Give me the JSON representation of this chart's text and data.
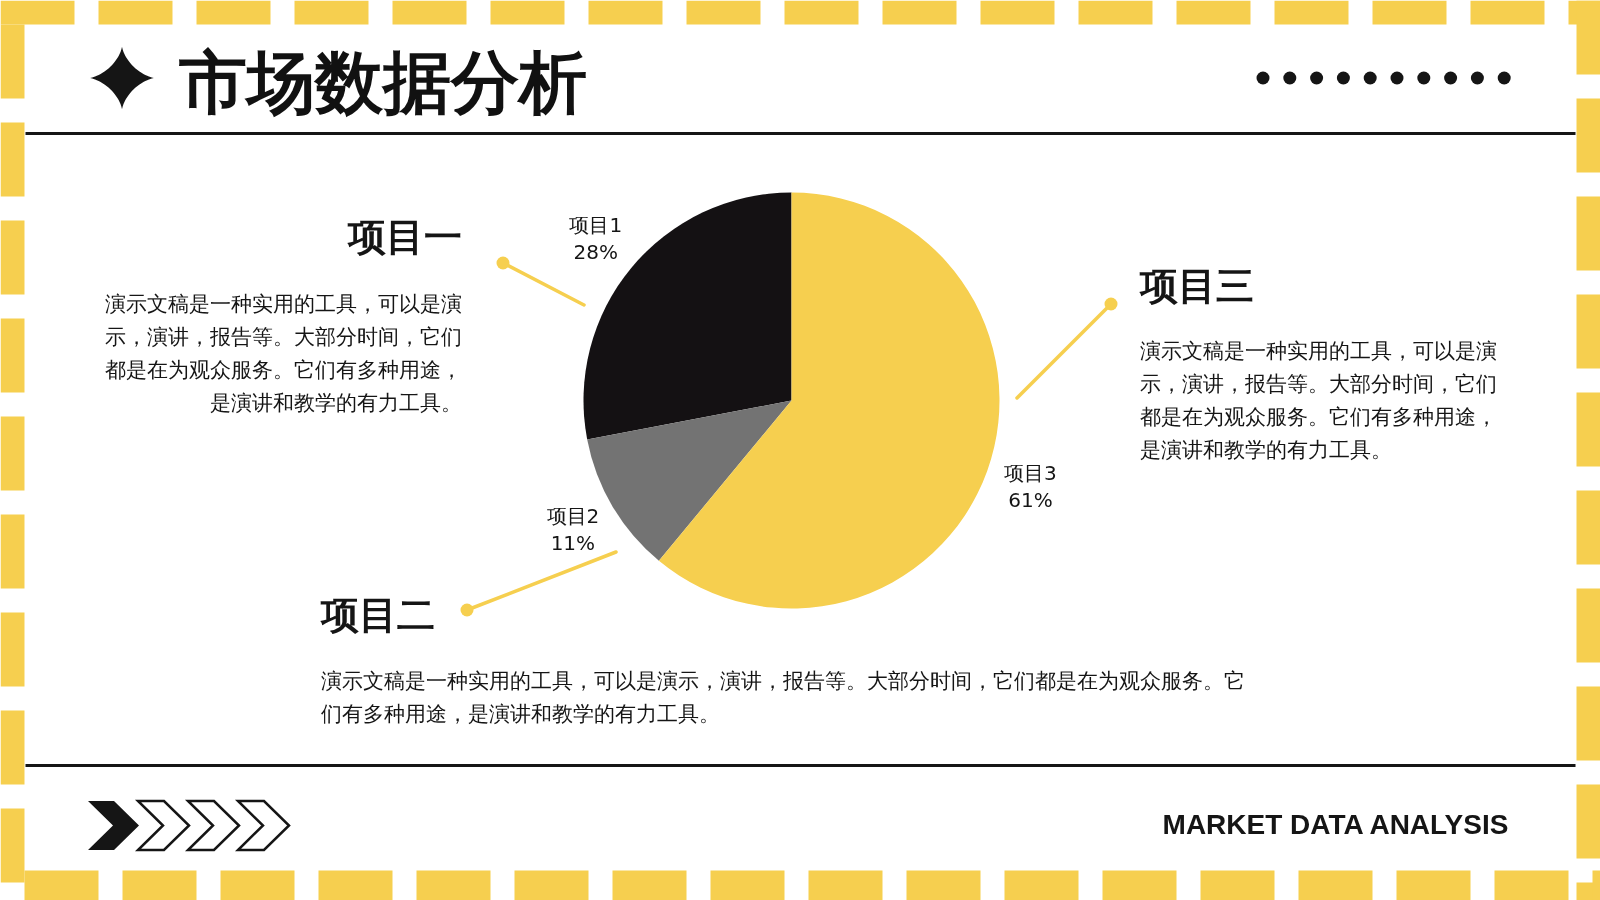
{
  "chart_data": {
    "type": "pie",
    "title": "市场数据分析",
    "categories": [
      "项目1",
      "项目2",
      "项目3"
    ],
    "values": [
      28,
      11,
      61
    ],
    "colors": [
      "#141113",
      "#737373",
      "#f6cf4f"
    ],
    "value_labels": [
      "28%",
      "11%",
      "61%"
    ],
    "annotations": [
      "项目一",
      "演示文稿是一种实用的工具，可以是演示，演讲，报告等。大部分时间，它们都是在为观众服务。它们有多种用途，是演讲和教学的有力工具。",
      "项目三",
      "演示文稿是一种实用的工具，可以是演示，演讲，报告等。大部分时间，它们都是在为观众服务。它们有多种用途，是演讲和教学的有力工具。",
      "项目二",
      "演示文稿是一种实用的工具，可以是演示，演讲，报告等。大部分时间，它们都是在为观众服务。它们有多种用途，是演讲和教学的有力工具。",
      "MARKET DATA ANALYSIS"
    ]
  }
}
